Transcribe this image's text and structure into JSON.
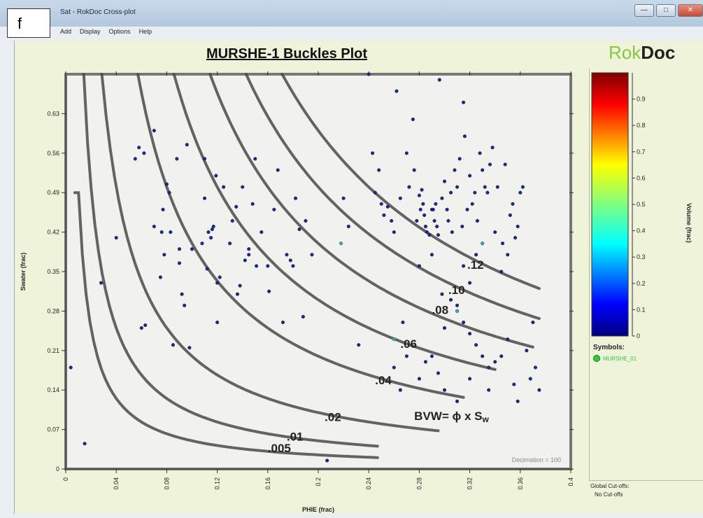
{
  "window": {
    "title": "Sat - RokDoc Cross-plot",
    "figure_label": "f",
    "menu": [
      "Add",
      "Display",
      "Options",
      "Help"
    ]
  },
  "brand": {
    "part1": "Rok",
    "part2": "Doc"
  },
  "chart_data": {
    "type": "scatter",
    "title": "MURSHE-1 Buckles Plot",
    "xlabel": "PHIE (frac)",
    "ylabel": "Swater (frac)",
    "xlim": [
      0,
      0.4
    ],
    "ylim": [
      0,
      0.7
    ],
    "xticks": [
      "0",
      "0.04",
      "0.08",
      "0.12",
      "0.16",
      "0.2",
      "0.24",
      "0.28",
      "0.32",
      "0.36",
      "0.4"
    ],
    "yticks": [
      "0",
      "0.07",
      "0.14",
      "0.21",
      "0.28",
      "0.35",
      "0.42",
      "0.49",
      "0.56",
      "0.63"
    ],
    "bvw_curves": [
      {
        "label": ".005",
        "value": 0.005
      },
      {
        "label": ".01",
        "value": 0.01
      },
      {
        "label": ".02",
        "value": 0.02
      },
      {
        "label": ".04",
        "value": 0.04
      },
      {
        "label": ".06",
        "value": 0.06
      },
      {
        "label": ".08",
        "value": 0.08
      },
      {
        "label": ".10",
        "value": 0.1
      },
      {
        "label": ".12",
        "value": 0.12
      }
    ],
    "equation": "BVW= ϕ x  S",
    "equation_sub": "w",
    "decimation": "Decimation = 100",
    "colorbar": {
      "label": "Volume (frac)",
      "ticks": [
        "0",
        "0.1",
        "0.2",
        "0.3",
        "0.4",
        "0.5",
        "0.6",
        "0.7",
        "0.8",
        "0.9"
      ],
      "range": [
        0,
        1
      ]
    },
    "points": [
      [
        0.004,
        0.18
      ],
      [
        0.015,
        0.045
      ],
      [
        0.028,
        0.33
      ],
      [
        0.04,
        0.41
      ],
      [
        0.055,
        0.55
      ],
      [
        0.058,
        0.57
      ],
      [
        0.062,
        0.56
      ],
      [
        0.06,
        0.25
      ],
      [
        0.063,
        0.255
      ],
      [
        0.07,
        0.43
      ],
      [
        0.07,
        0.6
      ],
      [
        0.075,
        0.34
      ],
      [
        0.076,
        0.42
      ],
      [
        0.077,
        0.46
      ],
      [
        0.078,
        0.38
      ],
      [
        0.08,
        0.505
      ],
      [
        0.082,
        0.49
      ],
      [
        0.083,
        0.42
      ],
      [
        0.085,
        0.22
      ],
      [
        0.088,
        0.55
      ],
      [
        0.09,
        0.365
      ],
      [
        0.09,
        0.39
      ],
      [
        0.092,
        0.31
      ],
      [
        0.094,
        0.29
      ],
      [
        0.096,
        0.575
      ],
      [
        0.098,
        0.215
      ],
      [
        0.1,
        0.39
      ],
      [
        0.108,
        0.4
      ],
      [
        0.11,
        0.48
      ],
      [
        0.11,
        0.55
      ],
      [
        0.112,
        0.355
      ],
      [
        0.113,
        0.42
      ],
      [
        0.115,
        0.41
      ],
      [
        0.116,
        0.425
      ],
      [
        0.117,
        0.43
      ],
      [
        0.119,
        0.52
      ],
      [
        0.12,
        0.33
      ],
      [
        0.12,
        0.26
      ],
      [
        0.122,
        0.34
      ],
      [
        0.125,
        0.5
      ],
      [
        0.13,
        0.4
      ],
      [
        0.132,
        0.44
      ],
      [
        0.135,
        0.465
      ],
      [
        0.136,
        0.31
      ],
      [
        0.138,
        0.325
      ],
      [
        0.14,
        0.5
      ],
      [
        0.142,
        0.37
      ],
      [
        0.145,
        0.38
      ],
      [
        0.145,
        0.39
      ],
      [
        0.148,
        0.47
      ],
      [
        0.15,
        0.55
      ],
      [
        0.151,
        0.36
      ],
      [
        0.155,
        0.42
      ],
      [
        0.16,
        0.36
      ],
      [
        0.161,
        0.315
      ],
      [
        0.165,
        0.46
      ],
      [
        0.168,
        0.53
      ],
      [
        0.172,
        0.26
      ],
      [
        0.175,
        0.38
      ],
      [
        0.178,
        0.37
      ],
      [
        0.18,
        0.36
      ],
      [
        0.182,
        0.48
      ],
      [
        0.185,
        0.425
      ],
      [
        0.188,
        0.27
      ],
      [
        0.19,
        0.44
      ],
      [
        0.195,
        0.38
      ],
      [
        0.207,
        0.015
      ],
      [
        0.22,
        0.48
      ],
      [
        0.224,
        0.43
      ],
      [
        0.232,
        0.22
      ],
      [
        0.24,
        0.7
      ],
      [
        0.243,
        0.56
      ],
      [
        0.245,
        0.49
      ],
      [
        0.248,
        0.53
      ],
      [
        0.25,
        0.47
      ],
      [
        0.252,
        0.45
      ],
      [
        0.255,
        0.465
      ],
      [
        0.258,
        0.44
      ],
      [
        0.26,
        0.42
      ],
      [
        0.262,
        0.67
      ],
      [
        0.265,
        0.48
      ],
      [
        0.267,
        0.26
      ],
      [
        0.27,
        0.56
      ],
      [
        0.272,
        0.5
      ],
      [
        0.275,
        0.62
      ],
      [
        0.276,
        0.53
      ],
      [
        0.278,
        0.44
      ],
      [
        0.28,
        0.485
      ],
      [
        0.281,
        0.46
      ],
      [
        0.282,
        0.495
      ],
      [
        0.283,
        0.47
      ],
      [
        0.284,
        0.45
      ],
      [
        0.285,
        0.43
      ],
      [
        0.286,
        0.42
      ],
      [
        0.288,
        0.415
      ],
      [
        0.29,
        0.46
      ],
      [
        0.291,
        0.46
      ],
      [
        0.292,
        0.44
      ],
      [
        0.293,
        0.47
      ],
      [
        0.294,
        0.43
      ],
      [
        0.295,
        0.415
      ],
      [
        0.296,
        0.69
      ],
      [
        0.298,
        0.48
      ],
      [
        0.3,
        0.51
      ],
      [
        0.302,
        0.46
      ],
      [
        0.303,
        0.44
      ],
      [
        0.305,
        0.49
      ],
      [
        0.306,
        0.42
      ],
      [
        0.308,
        0.53
      ],
      [
        0.31,
        0.5
      ],
      [
        0.312,
        0.55
      ],
      [
        0.314,
        0.43
      ],
      [
        0.315,
        0.65
      ],
      [
        0.316,
        0.59
      ],
      [
        0.318,
        0.46
      ],
      [
        0.32,
        0.52
      ],
      [
        0.322,
        0.47
      ],
      [
        0.324,
        0.49
      ],
      [
        0.326,
        0.44
      ],
      [
        0.328,
        0.56
      ],
      [
        0.33,
        0.53
      ],
      [
        0.332,
        0.5
      ],
      [
        0.334,
        0.49
      ],
      [
        0.336,
        0.54
      ],
      [
        0.338,
        0.57
      ],
      [
        0.34,
        0.42
      ],
      [
        0.342,
        0.5
      ],
      [
        0.345,
        0.35
      ],
      [
        0.346,
        0.4
      ],
      [
        0.348,
        0.54
      ],
      [
        0.35,
        0.38
      ],
      [
        0.352,
        0.45
      ],
      [
        0.354,
        0.47
      ],
      [
        0.356,
        0.41
      ],
      [
        0.358,
        0.43
      ],
      [
        0.36,
        0.49
      ],
      [
        0.362,
        0.5
      ],
      [
        0.365,
        0.21
      ],
      [
        0.368,
        0.16
      ],
      [
        0.37,
        0.26
      ],
      [
        0.372,
        0.18
      ],
      [
        0.375,
        0.14
      ],
      [
        0.298,
        0.31
      ],
      [
        0.305,
        0.3
      ],
      [
        0.31,
        0.29
      ],
      [
        0.315,
        0.26
      ],
      [
        0.32,
        0.24
      ],
      [
        0.325,
        0.22
      ],
      [
        0.33,
        0.2
      ],
      [
        0.335,
        0.18
      ],
      [
        0.34,
        0.19
      ],
      [
        0.345,
        0.2
      ],
      [
        0.35,
        0.23
      ],
      [
        0.355,
        0.15
      ],
      [
        0.28,
        0.16
      ],
      [
        0.285,
        0.19
      ],
      [
        0.29,
        0.2
      ],
      [
        0.295,
        0.17
      ],
      [
        0.3,
        0.14
      ],
      [
        0.31,
        0.12
      ],
      [
        0.32,
        0.16
      ],
      [
        0.335,
        0.14
      ],
      [
        0.358,
        0.12
      ],
      [
        0.265,
        0.14
      ],
      [
        0.26,
        0.18
      ],
      [
        0.27,
        0.2
      ],
      [
        0.3,
        0.25
      ],
      [
        0.31,
        0.28
      ],
      [
        0.29,
        0.38
      ],
      [
        0.28,
        0.36
      ],
      [
        0.32,
        0.33
      ],
      [
        0.315,
        0.36
      ],
      [
        0.325,
        0.38
      ]
    ],
    "highlight_points": [
      [
        0.218,
        0.4
      ],
      [
        0.33,
        0.4
      ],
      [
        0.31,
        0.28
      ],
      [
        0.26,
        0.23
      ],
      [
        0.33,
        0.4
      ]
    ]
  },
  "symbols": {
    "title": "Symbols:",
    "item": "MURSHE_01"
  },
  "cutoffs": {
    "title": "Global Cut-offs:",
    "value": "No Cut-offs"
  }
}
